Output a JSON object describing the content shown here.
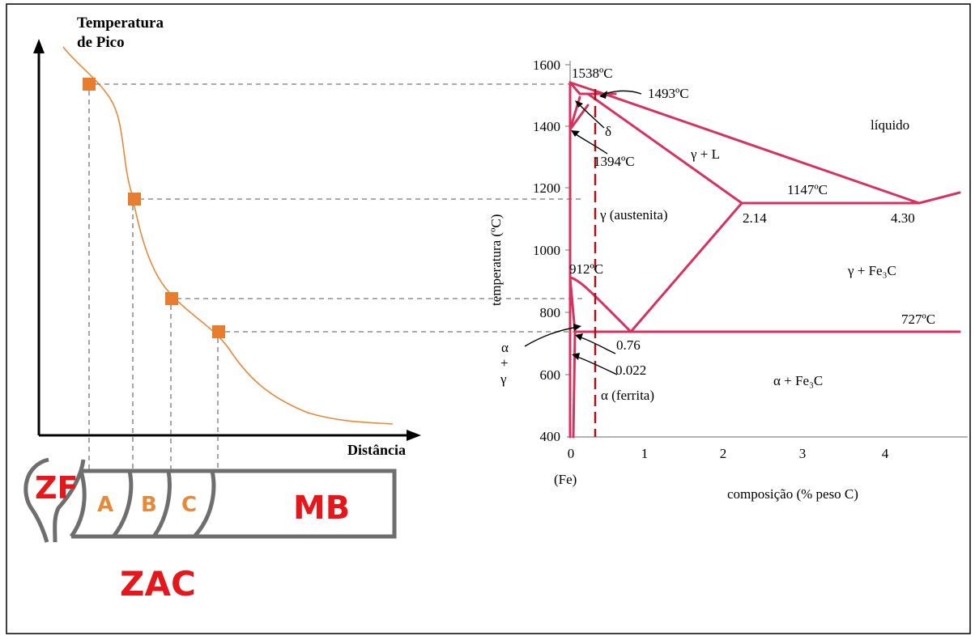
{
  "left_graph": {
    "y_label_line1": "Temperatura",
    "y_label_line2": "de Pico",
    "x_label": "Distância"
  },
  "zones": {
    "zf": "ZF",
    "a": "A",
    "b": "B",
    "c": "C",
    "mb": "MB",
    "zac": "ZAC"
  },
  "phase_diagram": {
    "y_axis_label": "temperatura (ºC)",
    "x_axis_label": "composição (% peso C)",
    "x_zero_sub": "(Fe)",
    "y_ticks": [
      "1600",
      "1400",
      "1200",
      "1000",
      "800",
      "600",
      "400"
    ],
    "x_ticks": [
      "0",
      "1",
      "2",
      "3",
      "4"
    ],
    "annotations": {
      "t1538": "1538ºC",
      "t1493": "1493ºC",
      "delta": "δ",
      "t1394": "1394ºC",
      "liquido": "líquido",
      "gamma_l": "γ + L",
      "t1147": "1147ºC",
      "austenita": "γ (austenita)",
      "c214": "2.14",
      "c430": "4.30",
      "t912": "912ºC",
      "gamma_fe3c": "γ + Fe₃C",
      "t727": "727ºC",
      "c076": "0.76",
      "c0022": "0.022",
      "ferrita": "α (ferrita)",
      "alpha_fe3c": "α + Fe₃C",
      "ag_alpha": "α",
      "ag_plus": "+",
      "ag_gamma": "γ"
    }
  },
  "colors": {
    "curve": "#e8893a",
    "marker": "#e87d30",
    "phase_line": "#d6315f",
    "dashed_red": "#b01010",
    "zone_text_red": "#e5171b",
    "zone_text_orange": "#e8893a",
    "outline": "#6e6e6e"
  }
}
